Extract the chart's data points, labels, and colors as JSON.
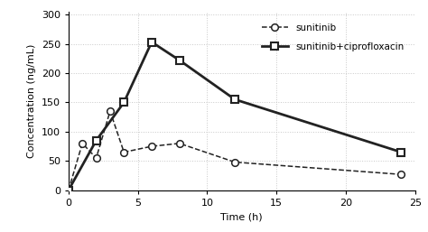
{
  "sunitinib_x": [
    0,
    1,
    2,
    3,
    4,
    6,
    8,
    12,
    24
  ],
  "sunitinib_y": [
    0,
    80,
    55,
    135,
    65,
    75,
    80,
    48,
    27
  ],
  "combo_x": [
    0,
    2,
    4,
    6,
    8,
    12,
    24
  ],
  "combo_y": [
    0,
    85,
    150,
    253,
    222,
    155,
    65
  ],
  "xlabel": "Time (h)",
  "ylabel": "Concentration (ng/mL)",
  "legend_sunitinib": "sunitinib",
  "legend_combo": "sunitinib+ciprofloxacin",
  "xlim": [
    0,
    25
  ],
  "ylim": [
    0,
    305
  ],
  "yticks": [
    0,
    50,
    100,
    150,
    200,
    250,
    300
  ],
  "xticks": [
    0,
    5,
    10,
    15,
    20,
    25
  ],
  "grid_color": "#c8c8c8",
  "line_color": "#222222",
  "background_color": "#ffffff",
  "title_fontsize": 9,
  "label_fontsize": 8,
  "tick_fontsize": 8,
  "legend_fontsize": 7.5
}
